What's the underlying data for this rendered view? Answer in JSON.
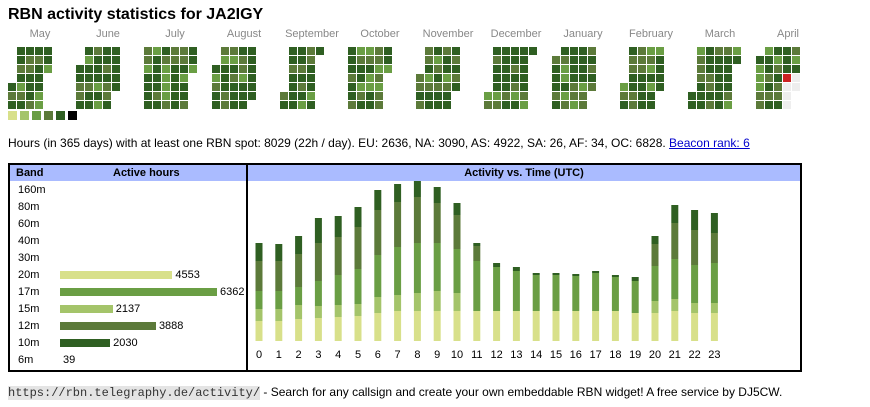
{
  "title": "RBN activity statistics for JA2IGY",
  "months": [
    "May",
    "June",
    "July",
    "August",
    "September",
    "October",
    "November",
    "December",
    "January",
    "February",
    "March",
    "April"
  ],
  "colors": {
    "level1": "#d8e08a",
    "level2": "#a4c46a",
    "level3": "#6a9e44",
    "level4": "#5c7a3a",
    "level5": "#2f5f22",
    "level6": "#000000",
    "empty": "#eeeeee",
    "today": "#cc2222",
    "header_bg": "#aabbff",
    "link": "#0000cc"
  },
  "summary": {
    "text": "Hours (in 365 days) with at least one RBN spot: 8029 (22h / day). EU: 2636, NA: 3090, AS: 4922, SA: 26, AF: 34, OC: 6828.",
    "link": "Beacon rank: 6"
  },
  "band_table": {
    "header_band": "Band",
    "header_active": "Active hours",
    "rows": [
      {
        "band": "160m",
        "value": ""
      },
      {
        "band": "80m",
        "value": ""
      },
      {
        "band": "60m",
        "value": ""
      },
      {
        "band": "40m",
        "value": ""
      },
      {
        "band": "30m",
        "value": ""
      },
      {
        "band": "20m",
        "value": "4553",
        "hours": 4553,
        "color": "#d8e08a"
      },
      {
        "band": "17m",
        "value": "6362",
        "hours": 6362,
        "color": "#6a9e44"
      },
      {
        "band": "15m",
        "value": "2137",
        "hours": 2137,
        "color": "#a4c46a"
      },
      {
        "band": "12m",
        "value": "3888",
        "hours": 3888,
        "color": "#5c7a3a"
      },
      {
        "band": "10m",
        "value": "2030",
        "hours": 2030,
        "color": "#2f5f22"
      },
      {
        "band": "6m",
        "value": "39",
        "hours": 39,
        "color": "#000000"
      }
    ]
  },
  "chart_data": {
    "type": "bar",
    "title": "Activity vs. Time (UTC)",
    "categories": [
      "0",
      "1",
      "2",
      "3",
      "4",
      "5",
      "6",
      "7",
      "8",
      "9",
      "10",
      "11",
      "12",
      "13",
      "14",
      "15",
      "16",
      "17",
      "18",
      "19",
      "20",
      "21",
      "22",
      "23"
    ],
    "stacked": true,
    "series": [
      {
        "band": "20m",
        "color": "#d8e08a",
        "values": [
          20,
          20,
          22,
          23,
          24,
          25,
          28,
          30,
          30,
          30,
          30,
          30,
          30,
          30,
          30,
          30,
          30,
          30,
          30,
          28,
          28,
          30,
          28,
          28
        ]
      },
      {
        "band": "15m",
        "color": "#a4c46a",
        "values": [
          12,
          12,
          14,
          12,
          12,
          12,
          16,
          16,
          18,
          20,
          18,
          0,
          0,
          0,
          0,
          0,
          0,
          0,
          0,
          0,
          12,
          12,
          10,
          10
        ]
      },
      {
        "band": "17m",
        "color": "#6a9e44",
        "values": [
          18,
          18,
          18,
          25,
          30,
          35,
          42,
          48,
          50,
          48,
          44,
          50,
          44,
          40,
          36,
          36,
          35,
          38,
          34,
          32,
          35,
          40,
          38,
          40
        ]
      },
      {
        "band": "12m",
        "color": "#5c7a3a",
        "values": [
          30,
          30,
          33,
          38,
          38,
          42,
          45,
          45,
          46,
          40,
          34,
          15,
          0,
          0,
          0,
          0,
          0,
          0,
          0,
          0,
          22,
          36,
          35,
          30
        ]
      },
      {
        "band": "10m",
        "color": "#2f5f22",
        "values": [
          18,
          17,
          18,
          25,
          21,
          20,
          20,
          18,
          18,
          16,
          12,
          3,
          4,
          4,
          2,
          2,
          2,
          2,
          2,
          4,
          8,
          18,
          20,
          20
        ]
      }
    ]
  },
  "footer": {
    "url": "https://rbn.telegraphy.de/activity/",
    "text": " - Search for any callsign and create your own embeddable RBN widget! A free service by DJ5CW."
  }
}
